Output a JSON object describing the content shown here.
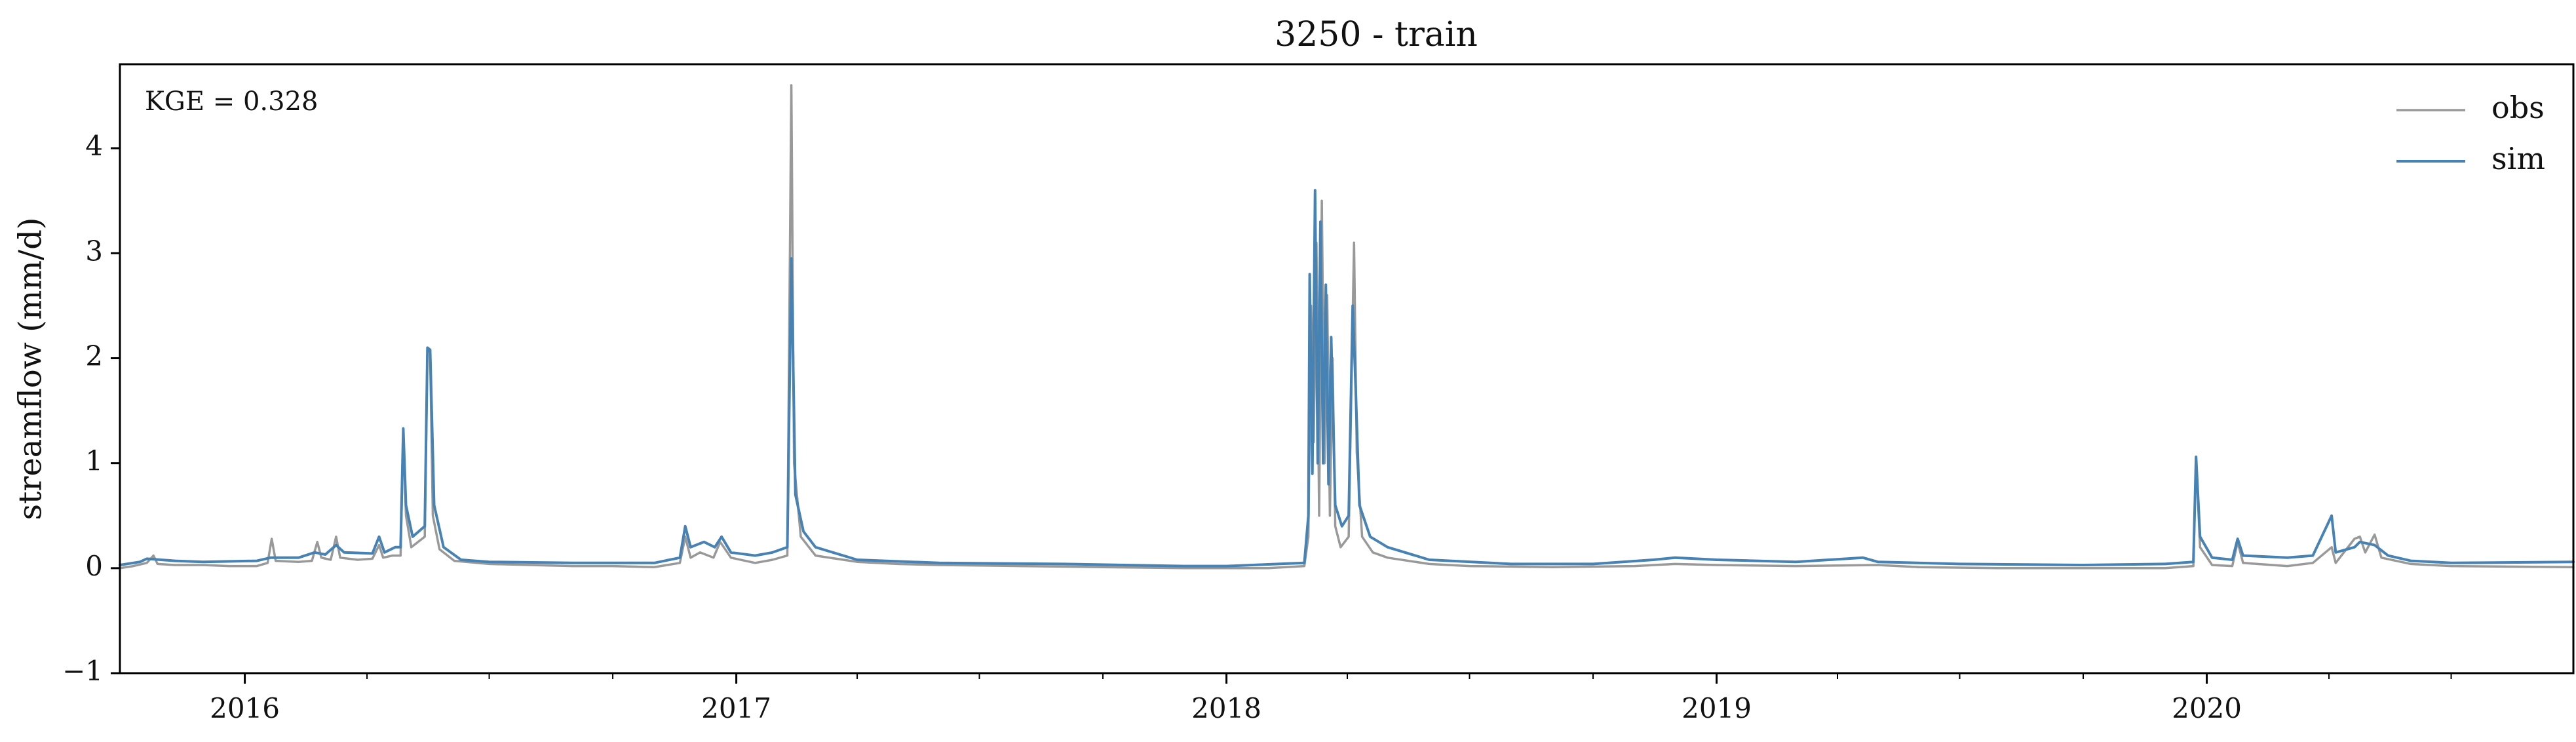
{
  "chart_data": {
    "type": "line",
    "title": "3250 - train",
    "xlabel": "",
    "ylabel": "streamflow (mm/d)",
    "xlim": [
      "2015-09-30",
      "2020-09-30"
    ],
    "ylim": [
      -1,
      4.8
    ],
    "yticks": [
      -1,
      0,
      1,
      2,
      3,
      4
    ],
    "ytick_labels": [
      "−1",
      "0",
      "1",
      "2",
      "3",
      "4"
    ],
    "xticks": [
      "2016-01-01",
      "2017-01-01",
      "2018-01-01",
      "2019-01-01",
      "2020-01-01"
    ],
    "xtick_labels": [
      "2016",
      "2017",
      "2018",
      "2019",
      "2020"
    ],
    "minor_xticks": [
      "2016-04-01",
      "2016-07-01",
      "2016-10-01",
      "2017-04-01",
      "2017-07-01",
      "2017-10-01",
      "2018-04-01",
      "2018-07-01",
      "2018-10-01",
      "2019-04-01",
      "2019-07-01",
      "2019-10-01",
      "2020-04-01",
      "2020-07-01"
    ],
    "grid": false,
    "legend_position": "top-right",
    "annotation": "KGE = 0.328",
    "series": [
      {
        "name": "obs",
        "color": "#999999",
        "points": [
          [
            "2015-09-30",
            0.0
          ],
          [
            "2015-10-10",
            0.02
          ],
          [
            "2015-10-20",
            0.05
          ],
          [
            "2015-10-25",
            0.12
          ],
          [
            "2015-10-28",
            0.04
          ],
          [
            "2015-11-10",
            0.03
          ],
          [
            "2015-12-01",
            0.03
          ],
          [
            "2015-12-20",
            0.02
          ],
          [
            "2016-01-10",
            0.02
          ],
          [
            "2016-01-18",
            0.05
          ],
          [
            "2016-01-21",
            0.28
          ],
          [
            "2016-01-24",
            0.07
          ],
          [
            "2016-02-10",
            0.06
          ],
          [
            "2016-02-20",
            0.07
          ],
          [
            "2016-02-24",
            0.25
          ],
          [
            "2016-02-27",
            0.1
          ],
          [
            "2016-03-05",
            0.08
          ],
          [
            "2016-03-09",
            0.3
          ],
          [
            "2016-03-12",
            0.1
          ],
          [
            "2016-03-25",
            0.08
          ],
          [
            "2016-04-05",
            0.09
          ],
          [
            "2016-04-10",
            0.22
          ],
          [
            "2016-04-13",
            0.1
          ],
          [
            "2016-04-20",
            0.12
          ],
          [
            "2016-04-26",
            0.12
          ],
          [
            "2016-04-28",
            1.3
          ],
          [
            "2016-04-30",
            0.5
          ],
          [
            "2016-05-04",
            0.2
          ],
          [
            "2016-05-14",
            0.3
          ],
          [
            "2016-05-16",
            2.1
          ],
          [
            "2016-05-18",
            2.05
          ],
          [
            "2016-05-20",
            0.5
          ],
          [
            "2016-05-25",
            0.18
          ],
          [
            "2016-06-05",
            0.07
          ],
          [
            "2016-07-01",
            0.04
          ],
          [
            "2016-08-01",
            0.03
          ],
          [
            "2016-09-01",
            0.02
          ],
          [
            "2016-10-01",
            0.02
          ],
          [
            "2016-11-01",
            0.01
          ],
          [
            "2016-11-20",
            0.05
          ],
          [
            "2016-11-24",
            0.3
          ],
          [
            "2016-11-28",
            0.1
          ],
          [
            "2016-12-05",
            0.15
          ],
          [
            "2016-12-15",
            0.1
          ],
          [
            "2016-12-20",
            0.25
          ],
          [
            "2016-12-28",
            0.1
          ],
          [
            "2017-01-15",
            0.05
          ],
          [
            "2017-01-28",
            0.08
          ],
          [
            "2017-02-08",
            0.12
          ],
          [
            "2017-02-11",
            4.6
          ],
          [
            "2017-02-13",
            1.0
          ],
          [
            "2017-02-18",
            0.3
          ],
          [
            "2017-03-01",
            0.12
          ],
          [
            "2017-04-01",
            0.06
          ],
          [
            "2017-05-01",
            0.04
          ],
          [
            "2017-06-01",
            0.03
          ],
          [
            "2017-08-01",
            0.02
          ],
          [
            "2017-10-01",
            0.01
          ],
          [
            "2017-12-01",
            0.0
          ],
          [
            "2018-01-01",
            0.0
          ],
          [
            "2018-02-01",
            0.0
          ],
          [
            "2018-02-28",
            0.02
          ],
          [
            "2018-03-03",
            0.3
          ],
          [
            "2018-03-05",
            2.5
          ],
          [
            "2018-03-07",
            1.2
          ],
          [
            "2018-03-09",
            3.1
          ],
          [
            "2018-03-11",
            0.5
          ],
          [
            "2018-03-13",
            3.5
          ],
          [
            "2018-03-15",
            1.0
          ],
          [
            "2018-03-17",
            2.6
          ],
          [
            "2018-03-19",
            0.5
          ],
          [
            "2018-03-21",
            2.0
          ],
          [
            "2018-03-23",
            0.4
          ],
          [
            "2018-03-27",
            0.2
          ],
          [
            "2018-04-02",
            0.3
          ],
          [
            "2018-04-06",
            3.1
          ],
          [
            "2018-04-08",
            1.1
          ],
          [
            "2018-04-12",
            0.3
          ],
          [
            "2018-04-20",
            0.15
          ],
          [
            "2018-05-01",
            0.1
          ],
          [
            "2018-06-01",
            0.04
          ],
          [
            "2018-07-01",
            0.02
          ],
          [
            "2018-09-01",
            0.01
          ],
          [
            "2018-11-01",
            0.02
          ],
          [
            "2018-12-01",
            0.04
          ],
          [
            "2019-01-01",
            0.03
          ],
          [
            "2019-03-01",
            0.02
          ],
          [
            "2019-05-01",
            0.03
          ],
          [
            "2019-06-01",
            0.01
          ],
          [
            "2019-08-01",
            0.0
          ],
          [
            "2019-10-01",
            0.0
          ],
          [
            "2019-12-01",
            0.0
          ],
          [
            "2019-12-22",
            0.02
          ],
          [
            "2019-12-24",
            1.05
          ],
          [
            "2019-12-27",
            0.2
          ],
          [
            "2020-01-05",
            0.03
          ],
          [
            "2020-01-20",
            0.02
          ],
          [
            "2020-01-24",
            0.25
          ],
          [
            "2020-01-28",
            0.05
          ],
          [
            "2020-03-01",
            0.02
          ],
          [
            "2020-03-20",
            0.05
          ],
          [
            "2020-04-03",
            0.2
          ],
          [
            "2020-04-06",
            0.05
          ],
          [
            "2020-04-20",
            0.28
          ],
          [
            "2020-04-24",
            0.3
          ],
          [
            "2020-04-28",
            0.15
          ],
          [
            "2020-05-05",
            0.32
          ],
          [
            "2020-05-10",
            0.1
          ],
          [
            "2020-06-01",
            0.04
          ],
          [
            "2020-07-01",
            0.02
          ],
          [
            "2020-09-30",
            0.01
          ]
        ]
      },
      {
        "name": "sim",
        "color": "#4682b4",
        "points": [
          [
            "2015-09-30",
            0.03
          ],
          [
            "2015-10-15",
            0.06
          ],
          [
            "2015-10-20",
            0.09
          ],
          [
            "2015-11-10",
            0.07
          ],
          [
            "2015-12-01",
            0.06
          ],
          [
            "2016-01-10",
            0.07
          ],
          [
            "2016-01-20",
            0.1
          ],
          [
            "2016-02-10",
            0.1
          ],
          [
            "2016-02-22",
            0.15
          ],
          [
            "2016-03-01",
            0.13
          ],
          [
            "2016-03-09",
            0.22
          ],
          [
            "2016-03-15",
            0.15
          ],
          [
            "2016-04-05",
            0.14
          ],
          [
            "2016-04-10",
            0.3
          ],
          [
            "2016-04-14",
            0.15
          ],
          [
            "2016-04-22",
            0.2
          ],
          [
            "2016-04-26",
            0.2
          ],
          [
            "2016-04-28",
            1.33
          ],
          [
            "2016-04-30",
            0.6
          ],
          [
            "2016-05-05",
            0.3
          ],
          [
            "2016-05-14",
            0.4
          ],
          [
            "2016-05-16",
            2.1
          ],
          [
            "2016-05-18",
            2.08
          ],
          [
            "2016-05-21",
            0.6
          ],
          [
            "2016-05-28",
            0.2
          ],
          [
            "2016-06-10",
            0.08
          ],
          [
            "2016-07-01",
            0.06
          ],
          [
            "2016-09-01",
            0.05
          ],
          [
            "2016-11-01",
            0.05
          ],
          [
            "2016-11-20",
            0.1
          ],
          [
            "2016-11-24",
            0.4
          ],
          [
            "2016-11-28",
            0.2
          ],
          [
            "2016-12-08",
            0.25
          ],
          [
            "2016-12-16",
            0.2
          ],
          [
            "2016-12-21",
            0.3
          ],
          [
            "2016-12-28",
            0.15
          ],
          [
            "2017-01-15",
            0.12
          ],
          [
            "2017-01-28",
            0.15
          ],
          [
            "2017-02-08",
            0.2
          ],
          [
            "2017-02-11",
            2.95
          ],
          [
            "2017-02-14",
            0.7
          ],
          [
            "2017-02-20",
            0.35
          ],
          [
            "2017-03-01",
            0.2
          ],
          [
            "2017-04-01",
            0.08
          ],
          [
            "2017-06-01",
            0.05
          ],
          [
            "2017-09-01",
            0.04
          ],
          [
            "2017-12-01",
            0.02
          ],
          [
            "2018-01-01",
            0.02
          ],
          [
            "2018-02-28",
            0.05
          ],
          [
            "2018-03-03",
            0.5
          ],
          [
            "2018-03-04",
            2.8
          ],
          [
            "2018-03-06",
            0.9
          ],
          [
            "2018-03-08",
            3.6
          ],
          [
            "2018-03-10",
            1.0
          ],
          [
            "2018-03-12",
            3.3
          ],
          [
            "2018-03-14",
            1.0
          ],
          [
            "2018-03-16",
            2.7
          ],
          [
            "2018-03-18",
            0.8
          ],
          [
            "2018-03-20",
            2.2
          ],
          [
            "2018-03-23",
            0.6
          ],
          [
            "2018-03-28",
            0.4
          ],
          [
            "2018-04-02",
            0.5
          ],
          [
            "2018-04-05",
            2.5
          ],
          [
            "2018-04-07",
            1.8
          ],
          [
            "2018-04-10",
            0.6
          ],
          [
            "2018-04-18",
            0.3
          ],
          [
            "2018-05-01",
            0.2
          ],
          [
            "2018-06-01",
            0.08
          ],
          [
            "2018-08-01",
            0.04
          ],
          [
            "2018-10-01",
            0.04
          ],
          [
            "2018-11-15",
            0.08
          ],
          [
            "2018-12-01",
            0.1
          ],
          [
            "2019-01-01",
            0.08
          ],
          [
            "2019-03-01",
            0.06
          ],
          [
            "2019-04-20",
            0.1
          ],
          [
            "2019-05-01",
            0.06
          ],
          [
            "2019-07-01",
            0.04
          ],
          [
            "2019-10-01",
            0.03
          ],
          [
            "2019-12-01",
            0.04
          ],
          [
            "2019-12-22",
            0.06
          ],
          [
            "2019-12-24",
            1.06
          ],
          [
            "2019-12-27",
            0.3
          ],
          [
            "2020-01-05",
            0.1
          ],
          [
            "2020-01-20",
            0.08
          ],
          [
            "2020-01-24",
            0.28
          ],
          [
            "2020-01-28",
            0.12
          ],
          [
            "2020-03-01",
            0.1
          ],
          [
            "2020-03-20",
            0.12
          ],
          [
            "2020-04-03",
            0.5
          ],
          [
            "2020-04-06",
            0.15
          ],
          [
            "2020-04-20",
            0.2
          ],
          [
            "2020-04-24",
            0.25
          ],
          [
            "2020-05-05",
            0.22
          ],
          [
            "2020-05-15",
            0.12
          ],
          [
            "2020-06-01",
            0.07
          ],
          [
            "2020-07-01",
            0.05
          ],
          [
            "2020-09-30",
            0.06
          ]
        ]
      }
    ]
  }
}
